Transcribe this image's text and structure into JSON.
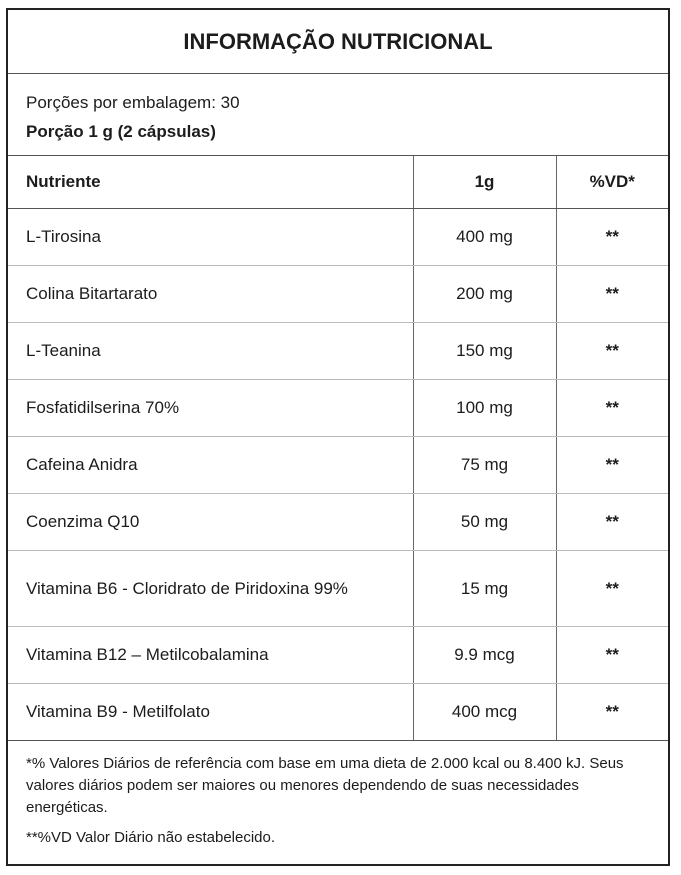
{
  "header": {
    "title": "INFORMAÇÃO NUTRICIONAL"
  },
  "serving": {
    "servings": "Porções por embalagem: 30",
    "portion": "Porção 1 g (2 cápsulas)"
  },
  "table": {
    "columns": [
      "Nutriente",
      "1g",
      "%VD*"
    ],
    "rows": [
      [
        "L-Tirosina",
        "400 mg",
        "**"
      ],
      [
        "Colina Bitartarato",
        "200 mg",
        "**"
      ],
      [
        "L-Teanina",
        "150 mg",
        "**"
      ],
      [
        "Fosfatidilserina 70%",
        "100 mg",
        "**"
      ],
      [
        "Cafeina Anidra",
        "75 mg",
        "**"
      ],
      [
        "Coenzima Q10",
        "50 mg",
        "**"
      ],
      [
        "Vitamina B6 - Cloridrato de Piridoxina 99%",
        "15 mg",
        "**"
      ],
      [
        "Vitamina B12 – Metilcobalamina",
        "9.9 mcg",
        "**"
      ],
      [
        "Vitamina B9 - Metilfolato",
        "400 mcg",
        "**"
      ]
    ]
  },
  "footer": {
    "notes": [
      "*% Valores Diários de referência com base em uma dieta de 2.000 kcal ou 8.400 kJ. Seus valores diários podem ser maiores ou menores dependendo de suas necessidades energéticas.",
      "**%VD Valor Diário não estabelecido."
    ]
  }
}
